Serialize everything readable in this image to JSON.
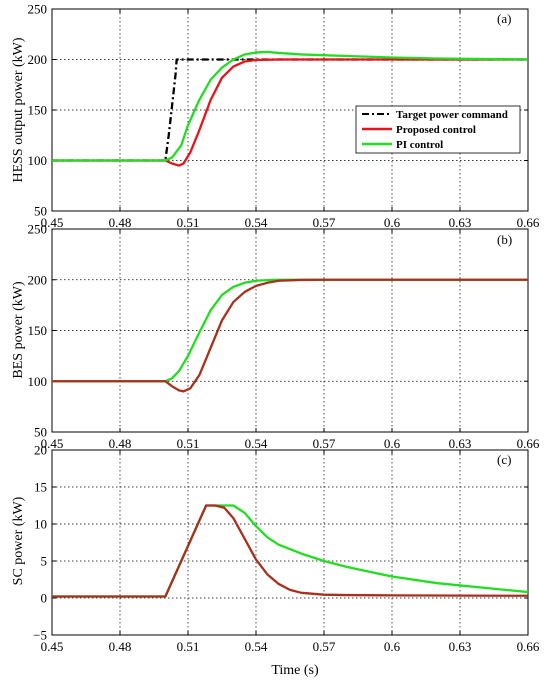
{
  "xlabel": "Time (s)",
  "x_ticks": [
    "0.45",
    "0.48",
    "0.51",
    "0.54",
    "0.57",
    "0.6",
    "0.63",
    "0.66"
  ],
  "x_values": [
    0.45,
    0.48,
    0.51,
    0.54,
    0.57,
    0.6,
    0.63,
    0.66
  ],
  "colors": {
    "target": "#000000",
    "proposed": "#e8141c",
    "pi": "#22dd22",
    "bes_proposed": "#a8301e",
    "sc_proposed": "#a8301e"
  },
  "chart_data": [
    {
      "type": "line",
      "tag": "(a)",
      "ylabel": "HESS output power (kW)",
      "xlim": [
        0.45,
        0.66
      ],
      "ylim": [
        50,
        250
      ],
      "y_ticks": [
        "50",
        "100",
        "150",
        "200",
        "250"
      ],
      "y_values": [
        50,
        100,
        150,
        200,
        250
      ],
      "grid": true,
      "legend": "right",
      "series": [
        {
          "name": "Target power command",
          "style": "dashdot",
          "color_key": "target",
          "x": [
            0.45,
            0.5,
            0.5015,
            0.503,
            0.5045,
            0.505,
            0.54,
            0.66
          ],
          "y": [
            100,
            100,
            125,
            155,
            185,
            200,
            200,
            200
          ]
        },
        {
          "name": "Proposed control",
          "style": "solid",
          "color_key": "proposed",
          "x": [
            0.45,
            0.5,
            0.503,
            0.506,
            0.508,
            0.511,
            0.515,
            0.52,
            0.525,
            0.53,
            0.535,
            0.54,
            0.55,
            0.57,
            0.66
          ],
          "y": [
            100,
            100,
            97,
            95,
            97,
            108,
            130,
            160,
            182,
            193,
            198,
            199.5,
            200,
            200,
            200
          ]
        },
        {
          "name": "PI control",
          "style": "solid",
          "color_key": "pi",
          "x": [
            0.45,
            0.5,
            0.503,
            0.507,
            0.51,
            0.515,
            0.52,
            0.525,
            0.53,
            0.535,
            0.54,
            0.545,
            0.55,
            0.56,
            0.58,
            0.6,
            0.62,
            0.66
          ],
          "y": [
            100,
            100,
            103,
            115,
            135,
            160,
            180,
            192,
            200,
            205,
            207,
            207.5,
            206.5,
            205,
            203.5,
            202,
            201,
            200
          ]
        }
      ]
    },
    {
      "type": "line",
      "tag": "(b)",
      "ylabel": "BES power (kW)",
      "xlim": [
        0.45,
        0.66
      ],
      "ylim": [
        50,
        250
      ],
      "y_ticks": [
        "50",
        "100",
        "150",
        "200",
        "250"
      ],
      "y_values": [
        50,
        100,
        150,
        200,
        250
      ],
      "grid": true,
      "series": [
        {
          "name": "",
          "style": "solid",
          "color_key": "pi",
          "x": [
            0.45,
            0.5,
            0.503,
            0.506,
            0.51,
            0.515,
            0.52,
            0.525,
            0.53,
            0.535,
            0.54,
            0.545,
            0.55,
            0.56,
            0.57,
            0.66
          ],
          "y": [
            100,
            100,
            103,
            110,
            125,
            148,
            170,
            185,
            193,
            197,
            199,
            199.6,
            200,
            200,
            200,
            200
          ]
        },
        {
          "name": "",
          "style": "solid",
          "color_key": "bes_proposed",
          "x": [
            0.45,
            0.5,
            0.503,
            0.506,
            0.508,
            0.511,
            0.515,
            0.52,
            0.525,
            0.53,
            0.535,
            0.54,
            0.545,
            0.55,
            0.56,
            0.57,
            0.66
          ],
          "y": [
            100,
            100,
            95,
            91,
            90,
            93,
            106,
            133,
            160,
            178,
            188,
            194,
            197,
            199,
            199.8,
            200,
            200
          ]
        }
      ]
    },
    {
      "type": "line",
      "tag": "(c)",
      "ylabel": "SC power (kW)",
      "xlabel": "Time (s)",
      "xlim": [
        0.45,
        0.66
      ],
      "ylim": [
        -5,
        20
      ],
      "y_ticks": [
        "−5",
        "0",
        "5",
        "10",
        "15",
        "20"
      ],
      "y_values": [
        -5,
        0,
        5,
        10,
        15,
        20
      ],
      "grid": true,
      "series": [
        {
          "name": "",
          "style": "solid",
          "color_key": "pi",
          "x": [
            0.45,
            0.5,
            0.518,
            0.525,
            0.53,
            0.535,
            0.54,
            0.545,
            0.55,
            0.56,
            0.57,
            0.58,
            0.6,
            0.62,
            0.64,
            0.66
          ],
          "y": [
            0.2,
            0.2,
            12.5,
            12.5,
            12.5,
            11.5,
            9.7,
            8.2,
            7.2,
            6.0,
            5.0,
            4.2,
            2.9,
            2.0,
            1.4,
            0.8
          ]
        },
        {
          "name": "",
          "style": "solid",
          "color_key": "sc_proposed",
          "x": [
            0.45,
            0.5,
            0.518,
            0.522,
            0.526,
            0.53,
            0.535,
            0.54,
            0.545,
            0.55,
            0.555,
            0.56,
            0.57,
            0.58,
            0.6,
            0.66
          ],
          "y": [
            0.2,
            0.2,
            12.5,
            12.5,
            12.2,
            10.8,
            8.0,
            5.2,
            3.2,
            1.9,
            1.1,
            0.7,
            0.45,
            0.4,
            0.35,
            0.3
          ]
        }
      ]
    }
  ]
}
